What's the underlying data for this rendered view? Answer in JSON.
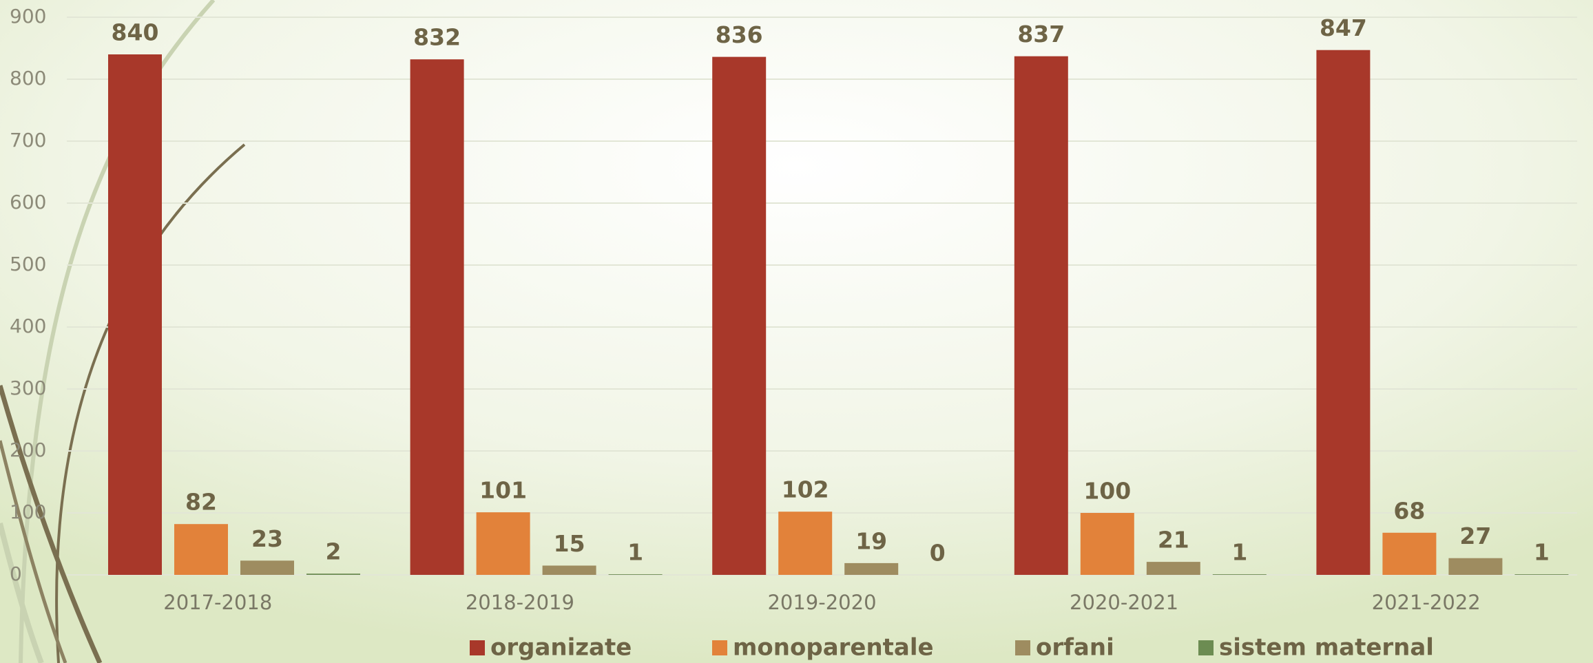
{
  "chart_data": {
    "type": "bar",
    "categories": [
      "2017-2018",
      "2018-2019",
      "2019-2020",
      "2020-2021",
      "2021-2022"
    ],
    "series": [
      {
        "name": "organizate",
        "color": "#a8382a",
        "values": [
          840,
          832,
          836,
          837,
          847
        ]
      },
      {
        "name": "monoparentale",
        "color": "#e2823a",
        "values": [
          82,
          101,
          102,
          100,
          68
        ]
      },
      {
        "name": "orfani",
        "color": "#9e8c60",
        "values": [
          23,
          15,
          19,
          21,
          27
        ]
      },
      {
        "name": "sistem maternal",
        "color": "#6c8c52",
        "values": [
          2,
          1,
          0,
          1,
          1
        ]
      }
    ],
    "ylim": [
      0,
      900
    ],
    "yticks": [
      0,
      100,
      200,
      300,
      400,
      500,
      600,
      700,
      800,
      900
    ],
    "grid": true,
    "legend": "bottom"
  }
}
